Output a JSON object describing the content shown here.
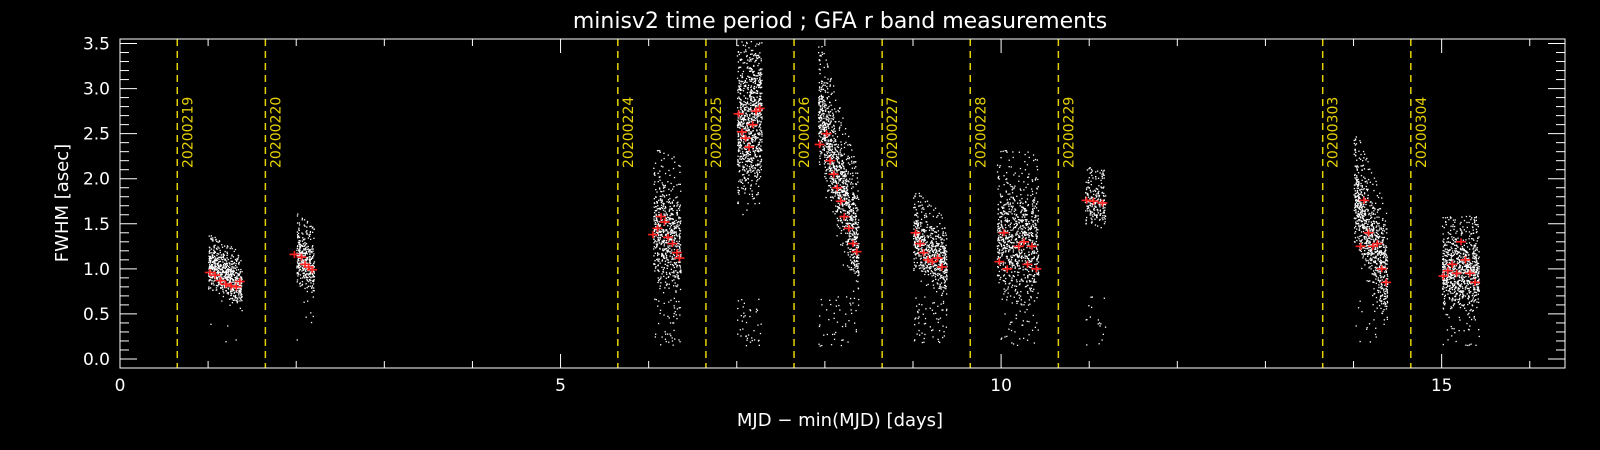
{
  "chart_data": {
    "type": "scatter",
    "title": "minisv2 time period ; GFA r band measurements",
    "xlabel": "MJD − min(MJD) [days]",
    "ylabel": "FWHM [asec]",
    "xlim": [
      0,
      16.4
    ],
    "ylim": [
      -0.1,
      3.55
    ],
    "x_ticks": [
      0,
      5,
      10,
      15
    ],
    "x_tick_labels": [
      "0",
      "5",
      "10",
      "15"
    ],
    "y_ticks": [
      0.0,
      0.5,
      1.0,
      1.5,
      2.0,
      2.5,
      3.0,
      3.5
    ],
    "y_tick_labels": [
      "0.0",
      "0.5",
      "1.0",
      "1.5",
      "2.0",
      "2.5",
      "3.0",
      "3.5"
    ],
    "grid": false,
    "colors": {
      "background": "#000000",
      "axes": "#ffffff",
      "points": "#ffffff",
      "medians": "#ff2020",
      "night_markers": "#e6d200"
    },
    "night_markers": [
      {
        "x": 0.65,
        "label": "20200219"
      },
      {
        "x": 1.65,
        "label": "20200220"
      },
      {
        "x": 5.65,
        "label": "20200224"
      },
      {
        "x": 6.65,
        "label": "20200225"
      },
      {
        "x": 7.65,
        "label": "20200226"
      },
      {
        "x": 8.65,
        "label": "20200227"
      },
      {
        "x": 9.65,
        "label": "20200228"
      },
      {
        "x": 10.65,
        "label": "20200229"
      },
      {
        "x": 13.65,
        "label": "20200303"
      },
      {
        "x": 14.65,
        "label": "20200304"
      }
    ],
    "clusters": [
      {
        "x0": 1.0,
        "x1": 1.38,
        "y_start": 1.02,
        "y_end": 0.8,
        "spread": 0.24,
        "density": 700,
        "outliers": 5
      },
      {
        "x0": 2.0,
        "x1": 2.2,
        "y_start": 1.15,
        "y_end": 1.0,
        "spread": 0.3,
        "density": 380,
        "outliers": 6
      },
      {
        "x0": 6.05,
        "x1": 6.36,
        "y_start": 1.4,
        "y_end": 1.25,
        "spread": 0.6,
        "density": 620,
        "outliers": 45
      },
      {
        "x0": 7.0,
        "x1": 7.28,
        "y_start": 2.55,
        "y_end": 2.7,
        "spread": 0.85,
        "density": 950,
        "outliers": 40
      },
      {
        "x0": 7.92,
        "x1": 8.38,
        "y_start": 2.75,
        "y_end": 1.2,
        "spread": 0.55,
        "density": 1100,
        "outliers": 50
      },
      {
        "x0": 9.0,
        "x1": 9.38,
        "y_start": 1.35,
        "y_end": 1.0,
        "spread": 0.35,
        "density": 620,
        "outliers": 60
      },
      {
        "x0": 9.95,
        "x1": 10.42,
        "y_start": 1.3,
        "y_end": 1.25,
        "spread": 0.65,
        "density": 850,
        "outliers": 40
      },
      {
        "x0": 10.95,
        "x1": 11.18,
        "y_start": 1.75,
        "y_end": 1.7,
        "spread": 0.25,
        "density": 230,
        "outliers": 18
      },
      {
        "x0": 14.0,
        "x1": 14.38,
        "y_start": 1.8,
        "y_end": 0.85,
        "spread": 0.5,
        "density": 850,
        "outliers": 20
      },
      {
        "x0": 15.0,
        "x1": 15.42,
        "y_start": 0.95,
        "y_end": 0.95,
        "spread": 0.4,
        "density": 850,
        "outliers": 40
      }
    ],
    "median_points": [
      {
        "x": 1.02,
        "y": 0.96
      },
      {
        "x": 1.08,
        "y": 0.93
      },
      {
        "x": 1.14,
        "y": 0.87
      },
      {
        "x": 1.2,
        "y": 0.83
      },
      {
        "x": 1.26,
        "y": 0.81
      },
      {
        "x": 1.32,
        "y": 0.8
      },
      {
        "x": 1.36,
        "y": 0.86
      },
      {
        "x": 1.98,
        "y": 1.16
      },
      {
        "x": 2.06,
        "y": 1.13
      },
      {
        "x": 2.1,
        "y": 1.05
      },
      {
        "x": 2.14,
        "y": 1.02
      },
      {
        "x": 2.18,
        "y": 0.99
      },
      {
        "x": 6.05,
        "y": 1.38
      },
      {
        "x": 6.1,
        "y": 1.45
      },
      {
        "x": 6.14,
        "y": 1.58
      },
      {
        "x": 6.18,
        "y": 1.52
      },
      {
        "x": 6.22,
        "y": 1.35
      },
      {
        "x": 6.27,
        "y": 1.28
      },
      {
        "x": 6.32,
        "y": 1.18
      },
      {
        "x": 6.35,
        "y": 1.12
      },
      {
        "x": 7.02,
        "y": 2.72
      },
      {
        "x": 7.06,
        "y": 2.52
      },
      {
        "x": 7.1,
        "y": 2.45
      },
      {
        "x": 7.14,
        "y": 2.35
      },
      {
        "x": 7.18,
        "y": 2.6
      },
      {
        "x": 7.22,
        "y": 2.75
      },
      {
        "x": 7.26,
        "y": 2.78
      },
      {
        "x": 7.94,
        "y": 2.38
      },
      {
        "x": 8.02,
        "y": 2.5
      },
      {
        "x": 8.06,
        "y": 2.2
      },
      {
        "x": 8.1,
        "y": 2.05
      },
      {
        "x": 8.14,
        "y": 1.9
      },
      {
        "x": 8.18,
        "y": 1.75
      },
      {
        "x": 8.22,
        "y": 1.58
      },
      {
        "x": 8.27,
        "y": 1.45
      },
      {
        "x": 8.32,
        "y": 1.28
      },
      {
        "x": 8.36,
        "y": 1.19
      },
      {
        "x": 9.03,
        "y": 1.4
      },
      {
        "x": 9.08,
        "y": 1.28
      },
      {
        "x": 9.12,
        "y": 1.18
      },
      {
        "x": 9.17,
        "y": 1.1
      },
      {
        "x": 9.22,
        "y": 1.08
      },
      {
        "x": 9.28,
        "y": 1.12
      },
      {
        "x": 9.33,
        "y": 1.02
      },
      {
        "x": 9.98,
        "y": 1.08
      },
      {
        "x": 10.03,
        "y": 1.4
      },
      {
        "x": 10.07,
        "y": 1.0
      },
      {
        "x": 10.2,
        "y": 1.25
      },
      {
        "x": 10.26,
        "y": 1.3
      },
      {
        "x": 10.3,
        "y": 1.05
      },
      {
        "x": 10.35,
        "y": 1.25
      },
      {
        "x": 10.4,
        "y": 1.0
      },
      {
        "x": 10.97,
        "y": 1.76
      },
      {
        "x": 11.05,
        "y": 1.75
      },
      {
        "x": 11.15,
        "y": 1.73
      },
      {
        "x": 14.08,
        "y": 1.25
      },
      {
        "x": 14.12,
        "y": 1.76
      },
      {
        "x": 14.17,
        "y": 1.4
      },
      {
        "x": 14.22,
        "y": 1.25
      },
      {
        "x": 14.27,
        "y": 1.28
      },
      {
        "x": 14.32,
        "y": 1.0
      },
      {
        "x": 14.37,
        "y": 0.85
      },
      {
        "x": 15.02,
        "y": 0.92
      },
      {
        "x": 15.07,
        "y": 0.98
      },
      {
        "x": 15.12,
        "y": 1.05
      },
      {
        "x": 15.17,
        "y": 0.95
      },
      {
        "x": 15.22,
        "y": 1.3
      },
      {
        "x": 15.27,
        "y": 1.1
      },
      {
        "x": 15.32,
        "y": 0.95
      },
      {
        "x": 15.38,
        "y": 0.85
      }
    ]
  }
}
